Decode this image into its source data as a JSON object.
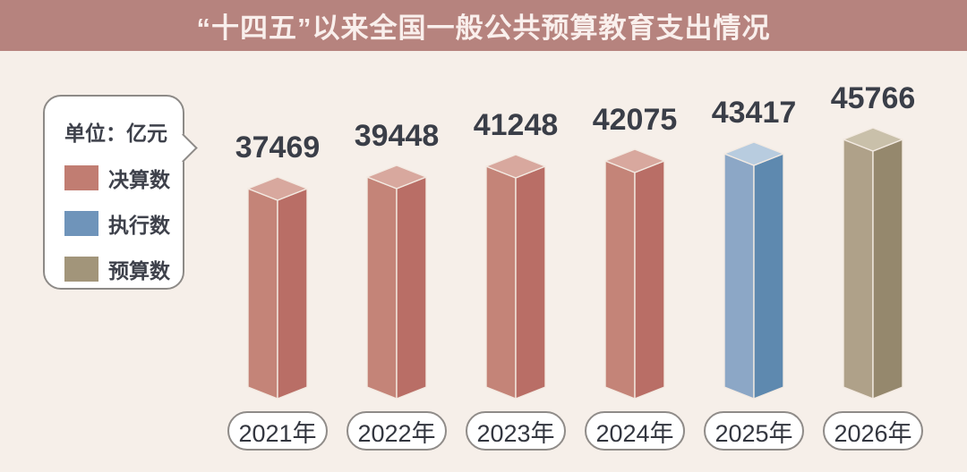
{
  "title": "“十四五”以来全国一般公共预算教育支出情况",
  "colors": {
    "page_bg": "#f6efe9",
    "title_bar_bg": "#b6837e",
    "title_text": "#f9efec",
    "value_text": "#3a3e48",
    "edge_highlight": "#f3eae2",
    "bubble_border": "#8d8a87"
  },
  "legend": {
    "unit_label": "单位：亿元",
    "items": [
      {
        "key": "final-accounts",
        "label": "决算数",
        "color": "#c17d72"
      },
      {
        "key": "execution",
        "label": "执行数",
        "color": "#6f94ba"
      },
      {
        "key": "budget",
        "label": "预算数",
        "color": "#a2957a"
      }
    ]
  },
  "chart_data": {
    "type": "bar",
    "style": "3d-column",
    "title": "“十四五”以来全国一般公共预算教育支出情况",
    "unit": "亿元",
    "legend_position": "left",
    "grid": false,
    "categories": [
      "2021年",
      "2022年",
      "2023年",
      "2024年",
      "2025年",
      "2026年"
    ],
    "values": [
      37469,
      39448,
      41248,
      42075,
      43417,
      45766
    ],
    "bars": [
      {
        "year": "2021年",
        "value": 37469,
        "series": "决算数"
      },
      {
        "year": "2022年",
        "value": 39448,
        "series": "决算数"
      },
      {
        "year": "2023年",
        "value": 41248,
        "series": "决算数"
      },
      {
        "year": "2024年",
        "value": 42075,
        "series": "决算数"
      },
      {
        "year": "2025年",
        "value": 43417,
        "series": "执行数"
      },
      {
        "year": "2026年",
        "value": 45766,
        "series": "预算数"
      }
    ],
    "series_colors": {
      "决算数": {
        "left": "#c48478",
        "right": "#b96e66",
        "top": "#d8a89e"
      },
      "执行数": {
        "left": "#8ca7c6",
        "right": "#5e89af",
        "top": "#b8ccdf"
      },
      "预算数": {
        "left": "#afa189",
        "right": "#95886d",
        "top": "#c9c0aa"
      }
    }
  }
}
